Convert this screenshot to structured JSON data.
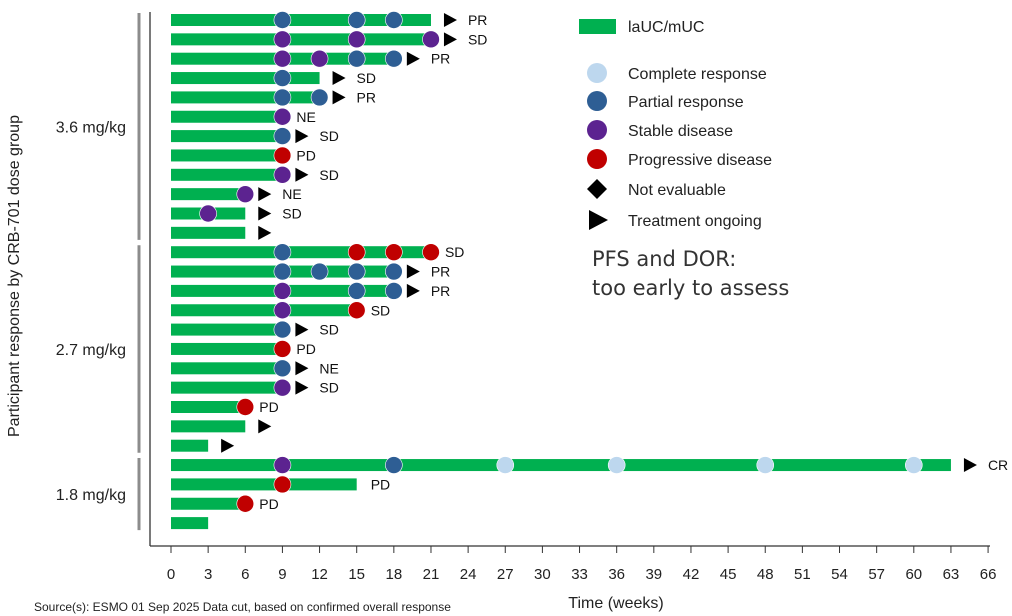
{
  "chart_data": {
    "type": "swimmer",
    "xlabel": "Time (weeks)",
    "ylabel": "Participant response by CRB-701 dose group",
    "xlim": [
      0,
      66
    ],
    "xticks": [
      0,
      3,
      6,
      9,
      12,
      15,
      18,
      21,
      24,
      27,
      30,
      33,
      36,
      39,
      42,
      45,
      48,
      51,
      54,
      57,
      60,
      63,
      66
    ],
    "groups": [
      {
        "label": "3.6 mg/kg",
        "first_row": 0,
        "last_row": 11
      },
      {
        "label": "2.7 mg/kg",
        "first_row": 12,
        "last_row": 22
      },
      {
        "label": "1.8 mg/kg",
        "first_row": 23,
        "last_row": 26
      }
    ],
    "series_label": "laUC/mUC",
    "colors": {
      "bar": "#00B050",
      "CR": "#BDD7EE",
      "PaR": "#2E5E94",
      "SD": "#5C2390",
      "PD": "#C00000",
      "marker": "#000000",
      "group_line": "#8C8C8C",
      "axis": "#333333"
    },
    "rows": [
      {
        "end": 21,
        "events": [
          {
            "t": 9,
            "r": "PaR"
          },
          {
            "t": 15,
            "r": "PaR"
          },
          {
            "t": 18,
            "r": "PaR"
          }
        ],
        "ongoing": true,
        "label": "PR"
      },
      {
        "end": 21,
        "events": [
          {
            "t": 9,
            "r": "SD"
          },
          {
            "t": 15,
            "r": "SD"
          },
          {
            "t": 21,
            "r": "SD"
          }
        ],
        "ongoing": true,
        "label": "SD"
      },
      {
        "end": 18,
        "events": [
          {
            "t": 9,
            "r": "SD"
          },
          {
            "t": 12,
            "r": "SD"
          },
          {
            "t": 15,
            "r": "PaR"
          },
          {
            "t": 18,
            "r": "PaR"
          }
        ],
        "ongoing": true,
        "label": "PR"
      },
      {
        "end": 12,
        "events": [
          {
            "t": 9,
            "r": "PaR"
          }
        ],
        "ongoing": true,
        "label": "SD"
      },
      {
        "end": 12,
        "events": [
          {
            "t": 9,
            "r": "PaR"
          },
          {
            "t": 12,
            "r": "PaR"
          }
        ],
        "ongoing": true,
        "label": "PR"
      },
      {
        "end": 9,
        "events": [
          {
            "t": 9,
            "r": "SD"
          }
        ],
        "ongoing": false,
        "label": "NE"
      },
      {
        "end": 9,
        "events": [
          {
            "t": 9,
            "r": "PaR"
          }
        ],
        "ongoing": true,
        "label": "SD"
      },
      {
        "end": 9,
        "events": [
          {
            "t": 9,
            "r": "PD"
          }
        ],
        "ongoing": false,
        "label": "PD"
      },
      {
        "end": 9,
        "events": [
          {
            "t": 9,
            "r": "SD"
          }
        ],
        "ongoing": true,
        "label": "SD"
      },
      {
        "end": 6,
        "events": [
          {
            "t": 6,
            "r": "SD"
          }
        ],
        "ongoing": true,
        "label": "NE"
      },
      {
        "end": 6,
        "events": [
          {
            "t": 3,
            "r": "SD"
          }
        ],
        "ongoing": true,
        "label": "SD"
      },
      {
        "end": 6,
        "events": [],
        "ongoing": true,
        "label": ""
      },
      {
        "end": 21,
        "events": [
          {
            "t": 9,
            "r": "PaR"
          },
          {
            "t": 15,
            "r": "PD"
          },
          {
            "t": 18,
            "r": "PD"
          },
          {
            "t": 21,
            "r": "PD"
          }
        ],
        "ongoing": false,
        "label": "SD"
      },
      {
        "end": 18,
        "events": [
          {
            "t": 9,
            "r": "PaR"
          },
          {
            "t": 12,
            "r": "PaR"
          },
          {
            "t": 15,
            "r": "PaR"
          },
          {
            "t": 18,
            "r": "PaR"
          }
        ],
        "ongoing": true,
        "label": "PR"
      },
      {
        "end": 18,
        "events": [
          {
            "t": 9,
            "r": "SD"
          },
          {
            "t": 15,
            "r": "PaR"
          },
          {
            "t": 18,
            "r": "PaR"
          }
        ],
        "ongoing": true,
        "label": "PR"
      },
      {
        "end": 15,
        "events": [
          {
            "t": 9,
            "r": "SD"
          },
          {
            "t": 15,
            "r": "PD"
          }
        ],
        "ongoing": false,
        "label": "SD"
      },
      {
        "end": 9,
        "events": [
          {
            "t": 9,
            "r": "PaR"
          }
        ],
        "ongoing": true,
        "label": "SD"
      },
      {
        "end": 9,
        "events": [
          {
            "t": 9,
            "r": "PD"
          }
        ],
        "ongoing": false,
        "label": "PD"
      },
      {
        "end": 9,
        "events": [
          {
            "t": 9,
            "r": "PaR"
          }
        ],
        "ongoing": true,
        "label": "NE"
      },
      {
        "end": 9,
        "events": [
          {
            "t": 9,
            "r": "SD"
          }
        ],
        "ongoing": true,
        "label": "SD"
      },
      {
        "end": 6,
        "events": [
          {
            "t": 6,
            "r": "PD"
          }
        ],
        "ongoing": false,
        "label": "PD"
      },
      {
        "end": 6,
        "events": [],
        "ongoing": true,
        "label": ""
      },
      {
        "end": 3,
        "events": [],
        "ongoing": true,
        "label": ""
      },
      {
        "end": 63,
        "events": [
          {
            "t": 9,
            "r": "SD"
          },
          {
            "t": 18,
            "r": "PaR"
          },
          {
            "t": 27,
            "r": "CR"
          },
          {
            "t": 36,
            "r": "CR"
          },
          {
            "t": 48,
            "r": "CR"
          },
          {
            "t": 60,
            "r": "CR"
          }
        ],
        "ongoing": true,
        "label": "CR"
      },
      {
        "end": 15,
        "events": [
          {
            "t": 9,
            "r": "PD"
          }
        ],
        "ongoing": false,
        "label": "PD"
      },
      {
        "end": 6,
        "events": [
          {
            "t": 6,
            "r": "PD"
          }
        ],
        "ongoing": false,
        "label": "PD"
      },
      {
        "end": 3,
        "events": [],
        "ongoing": false,
        "label": ""
      }
    ]
  },
  "legend": {
    "bar_label": "laUC/mUC",
    "items": [
      {
        "key": "CR",
        "label": "Complete response",
        "shape": "circle"
      },
      {
        "key": "PaR",
        "label": "Partial response",
        "shape": "circle"
      },
      {
        "key": "SD",
        "label": "Stable disease",
        "shape": "circle"
      },
      {
        "key": "PD",
        "label": "Progressive disease",
        "shape": "circle"
      },
      {
        "key": "NE",
        "label": "Not evaluable",
        "shape": "diamond"
      },
      {
        "key": "ONG",
        "label": "Treatment ongoing",
        "shape": "triangle"
      }
    ]
  },
  "note": {
    "line1": "PFS and DOR:",
    "line2": "too early to assess"
  },
  "source": "Source(s): ESMO 01 Sep 2025 Data cut, based on confirmed  overall response"
}
